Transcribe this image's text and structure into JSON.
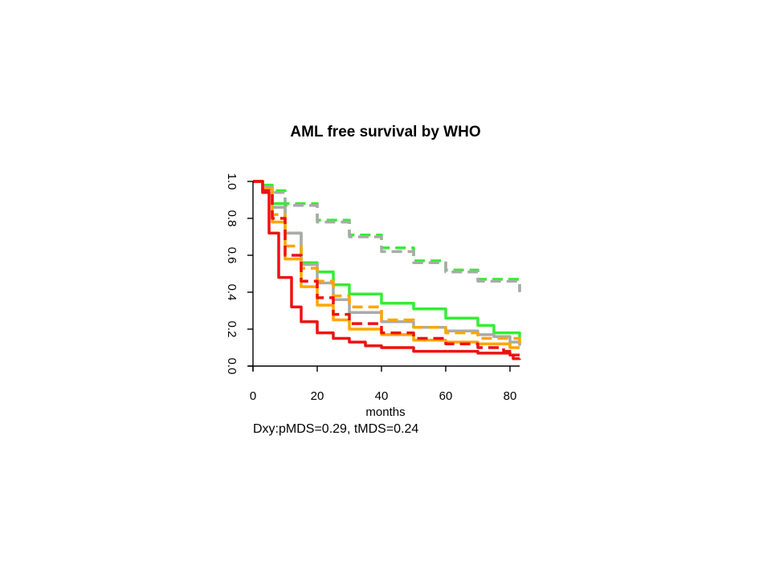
{
  "chart_data": {
    "type": "line",
    "title": "AML free survival by WHO",
    "xlabel": "months",
    "ylabel": "",
    "xlim": [
      0,
      83
    ],
    "ylim": [
      0,
      1
    ],
    "x_ticks": [
      "0",
      "20",
      "40",
      "60",
      "80"
    ],
    "y_ticks": [
      "0.0",
      "0.2",
      "0.4",
      "0.6",
      "0.8",
      "1.0"
    ],
    "annotation": "Dxy:pMDS=0.29, tMDS=0.24",
    "grid": false,
    "series": [
      {
        "color": "#33ee33",
        "dash": true,
        "x": [
          0,
          3,
          10,
          20,
          30,
          40,
          50,
          60,
          70,
          83
        ],
        "values": [
          1.0,
          0.95,
          0.88,
          0.79,
          0.71,
          0.64,
          0.57,
          0.52,
          0.47,
          0.41
        ]
      },
      {
        "color": "#aaaaaa",
        "dash": true,
        "x": [
          0,
          3,
          10,
          20,
          30,
          40,
          50,
          60,
          70,
          83
        ],
        "values": [
          1.0,
          0.94,
          0.87,
          0.78,
          0.7,
          0.62,
          0.56,
          0.51,
          0.46,
          0.4
        ]
      },
      {
        "color": "#33ee33",
        "dash": false,
        "x": [
          0,
          3,
          6,
          10,
          15,
          20,
          25,
          30,
          40,
          50,
          60,
          70,
          75,
          83
        ],
        "values": [
          1.0,
          0.98,
          0.88,
          0.72,
          0.56,
          0.51,
          0.44,
          0.39,
          0.34,
          0.31,
          0.26,
          0.22,
          0.18,
          0.15
        ]
      },
      {
        "color": "#aaaaaa",
        "dash": false,
        "x": [
          0,
          3,
          6,
          10,
          15,
          20,
          25,
          30,
          40,
          50,
          60,
          70,
          75,
          80,
          83
        ],
        "values": [
          1.0,
          0.97,
          0.86,
          0.72,
          0.55,
          0.45,
          0.36,
          0.29,
          0.24,
          0.21,
          0.19,
          0.17,
          0.16,
          0.13,
          0.11
        ]
      },
      {
        "color": "#ffa500",
        "dash": true,
        "x": [
          0,
          3,
          6,
          10,
          15,
          20,
          25,
          30,
          40,
          50,
          60,
          70,
          83
        ],
        "values": [
          1.0,
          0.96,
          0.82,
          0.65,
          0.53,
          0.46,
          0.38,
          0.32,
          0.25,
          0.21,
          0.18,
          0.15,
          0.12
        ]
      },
      {
        "color": "#ffa500",
        "dash": false,
        "x": [
          0,
          3,
          6,
          10,
          15,
          20,
          25,
          30,
          40,
          50,
          60,
          70,
          80,
          83
        ],
        "values": [
          1.0,
          0.96,
          0.78,
          0.58,
          0.43,
          0.33,
          0.25,
          0.2,
          0.17,
          0.14,
          0.13,
          0.12,
          0.1,
          0.1
        ]
      },
      {
        "color": "#ee1111",
        "dash": true,
        "x": [
          0,
          3,
          6,
          10,
          15,
          20,
          25,
          30,
          40,
          50,
          60,
          70,
          78,
          81,
          83
        ],
        "values": [
          1.0,
          0.95,
          0.8,
          0.6,
          0.46,
          0.37,
          0.28,
          0.23,
          0.18,
          0.15,
          0.12,
          0.1,
          0.08,
          0.04,
          0.06
        ]
      },
      {
        "color": "#ee1111",
        "dash": false,
        "x": [
          0,
          3,
          5,
          8,
          12,
          15,
          20,
          25,
          30,
          35,
          40,
          50,
          60,
          70,
          80,
          83
        ],
        "values": [
          1.0,
          0.94,
          0.72,
          0.48,
          0.32,
          0.24,
          0.18,
          0.15,
          0.13,
          0.11,
          0.1,
          0.08,
          0.08,
          0.07,
          0.06,
          0.06
        ]
      }
    ]
  }
}
